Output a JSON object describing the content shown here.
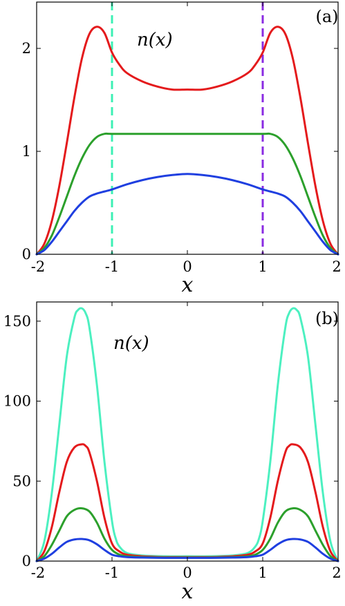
{
  "chart_data": [
    {
      "type": "line",
      "panel_label": "(a)",
      "annotation": "n(x)",
      "xlabel": "x",
      "ylabel": "",
      "xlim": [
        -2,
        2
      ],
      "ylim": [
        0,
        2.45
      ],
      "xticks": [
        -2,
        -1,
        0,
        1,
        2
      ],
      "yticks": [
        0,
        1,
        2
      ],
      "xtick_labels": [
        "-2",
        "-1",
        "0",
        "1",
        "2"
      ],
      "ytick_labels": [
        "0",
        "1",
        "2"
      ],
      "vertical_lines": [
        {
          "x": -1,
          "color": "#3cf0b4",
          "style": "dashed"
        },
        {
          "x": 1,
          "color": "#8a2be2",
          "style": "dashed"
        }
      ],
      "series": [
        {
          "color": "#e41a1c",
          "x": [
            -2,
            -1.9,
            -1.8,
            -1.7,
            -1.6,
            -1.5,
            -1.4,
            -1.3,
            -1.2,
            -1.1,
            -1.0,
            -0.9,
            -0.8,
            -0.6,
            -0.4,
            -0.2,
            0,
            0.2,
            0.4,
            0.6,
            0.8,
            0.9,
            1.0,
            1.1,
            1.2,
            1.3,
            1.4,
            1.5,
            1.6,
            1.7,
            1.8,
            1.9,
            2
          ],
          "y": [
            0,
            0.1,
            0.32,
            0.66,
            1.08,
            1.52,
            1.9,
            2.14,
            2.21,
            2.15,
            1.96,
            1.84,
            1.76,
            1.68,
            1.63,
            1.6,
            1.6,
            1.6,
            1.63,
            1.68,
            1.76,
            1.84,
            1.96,
            2.15,
            2.21,
            2.14,
            1.9,
            1.52,
            1.08,
            0.66,
            0.32,
            0.1,
            0
          ]
        },
        {
          "color": "#2ca02c",
          "x": [
            -2,
            -1.9,
            -1.8,
            -1.7,
            -1.6,
            -1.5,
            -1.4,
            -1.3,
            -1.2,
            -1.1,
            -1.0,
            -0.5,
            0,
            0.5,
            1.0,
            1.1,
            1.2,
            1.3,
            1.4,
            1.5,
            1.6,
            1.7,
            1.8,
            1.9,
            2
          ],
          "y": [
            0,
            0.06,
            0.18,
            0.36,
            0.56,
            0.76,
            0.93,
            1.06,
            1.14,
            1.17,
            1.17,
            1.17,
            1.17,
            1.17,
            1.17,
            1.17,
            1.14,
            1.06,
            0.93,
            0.76,
            0.56,
            0.36,
            0.18,
            0.06,
            0
          ]
        },
        {
          "color": "#1f3fe0",
          "x": [
            -2,
            -1.9,
            -1.8,
            -1.7,
            -1.6,
            -1.5,
            -1.4,
            -1.3,
            -1.2,
            -1.1,
            -1.0,
            -0.8,
            -0.6,
            -0.4,
            -0.2,
            0,
            0.2,
            0.4,
            0.6,
            0.8,
            1.0,
            1.1,
            1.2,
            1.3,
            1.4,
            1.5,
            1.6,
            1.7,
            1.8,
            1.9,
            2
          ],
          "y": [
            0,
            0.04,
            0.12,
            0.22,
            0.32,
            0.42,
            0.5,
            0.56,
            0.59,
            0.61,
            0.63,
            0.68,
            0.72,
            0.75,
            0.77,
            0.78,
            0.77,
            0.75,
            0.72,
            0.68,
            0.63,
            0.61,
            0.59,
            0.56,
            0.5,
            0.42,
            0.32,
            0.22,
            0.12,
            0.04,
            0
          ]
        }
      ]
    },
    {
      "type": "line",
      "panel_label": "(b)",
      "annotation": "n(x)",
      "xlabel": "x",
      "ylabel": "",
      "xlim": [
        -2,
        2
      ],
      "ylim": [
        0,
        162
      ],
      "xticks": [
        -2,
        -1,
        0,
        1,
        2
      ],
      "yticks": [
        0,
        50,
        100,
        150
      ],
      "xtick_labels": [
        "-2",
        "-1",
        "0",
        "1",
        "2"
      ],
      "ytick_labels": [
        "0",
        "50",
        "100",
        "150"
      ],
      "series": [
        {
          "color": "#4cf0c0",
          "x": [
            -2,
            -1.9,
            -1.8,
            -1.7,
            -1.6,
            -1.5,
            -1.45,
            -1.4,
            -1.35,
            -1.3,
            -1.2,
            -1.1,
            -1.0,
            -0.95,
            -0.9,
            -0.8,
            -0.6,
            -0.3,
            0,
            0.3,
            0.6,
            0.8,
            0.9,
            0.95,
            1.0,
            1.1,
            1.2,
            1.3,
            1.35,
            1.4,
            1.45,
            1.5,
            1.6,
            1.7,
            1.8,
            1.9,
            2
          ],
          "y": [
            0,
            12,
            42,
            85,
            128,
            152,
            157,
            158,
            155,
            146,
            110,
            62,
            25,
            14,
            9,
            5,
            3.5,
            3,
            3,
            3,
            3.5,
            5,
            9,
            14,
            25,
            62,
            110,
            146,
            155,
            158,
            157,
            152,
            128,
            85,
            42,
            12,
            0
          ]
        },
        {
          "color": "#e41a1c",
          "x": [
            -2,
            -1.9,
            -1.8,
            -1.7,
            -1.6,
            -1.5,
            -1.4,
            -1.35,
            -1.3,
            -1.2,
            -1.1,
            -1.0,
            -0.9,
            -0.8,
            -0.6,
            -0.3,
            0,
            0.3,
            0.6,
            0.8,
            0.9,
            1.0,
            1.1,
            1.2,
            1.3,
            1.35,
            1.4,
            1.5,
            1.6,
            1.7,
            1.8,
            1.9,
            2
          ],
          "y": [
            0,
            6,
            21,
            43,
            62,
            71,
            73,
            72,
            68,
            50,
            27,
            11,
            6,
            4,
            3,
            2.5,
            2.5,
            2.5,
            3,
            4,
            6,
            11,
            27,
            50,
            68,
            72,
            73,
            71,
            62,
            43,
            21,
            6,
            0
          ]
        },
        {
          "color": "#2ca02c",
          "x": [
            -2,
            -1.9,
            -1.8,
            -1.7,
            -1.6,
            -1.5,
            -1.4,
            -1.3,
            -1.2,
            -1.1,
            -1.0,
            -0.9,
            -0.8,
            -0.6,
            -0.3,
            0,
            0.3,
            0.6,
            0.8,
            0.9,
            1.0,
            1.1,
            1.2,
            1.3,
            1.4,
            1.5,
            1.6,
            1.7,
            1.8,
            1.9,
            2
          ],
          "y": [
            0,
            3,
            10,
            19,
            28,
            32,
            33,
            31,
            24,
            14,
            7,
            4,
            3,
            2.5,
            2.2,
            2.2,
            2.2,
            2.5,
            3,
            4,
            7,
            14,
            24,
            31,
            33,
            32,
            28,
            19,
            10,
            3,
            0
          ]
        },
        {
          "color": "#1f3fe0",
          "x": [
            -2,
            -1.9,
            -1.8,
            -1.7,
            -1.6,
            -1.5,
            -1.4,
            -1.3,
            -1.2,
            -1.1,
            -1.0,
            -0.9,
            -0.8,
            -0.6,
            -0.3,
            0,
            0.3,
            0.6,
            0.8,
            0.9,
            1.0,
            1.1,
            1.2,
            1.3,
            1.4,
            1.5,
            1.6,
            1.7,
            1.8,
            1.9,
            2
          ],
          "y": [
            0,
            1.5,
            4.5,
            8.5,
            12,
            13.5,
            13.8,
            13,
            10.5,
            7,
            4,
            3,
            2.5,
            2.2,
            2,
            2,
            2,
            2.2,
            2.5,
            3,
            4,
            7,
            10.5,
            13,
            13.8,
            13.5,
            12,
            8.5,
            4.5,
            1.5,
            0
          ]
        }
      ]
    }
  ]
}
